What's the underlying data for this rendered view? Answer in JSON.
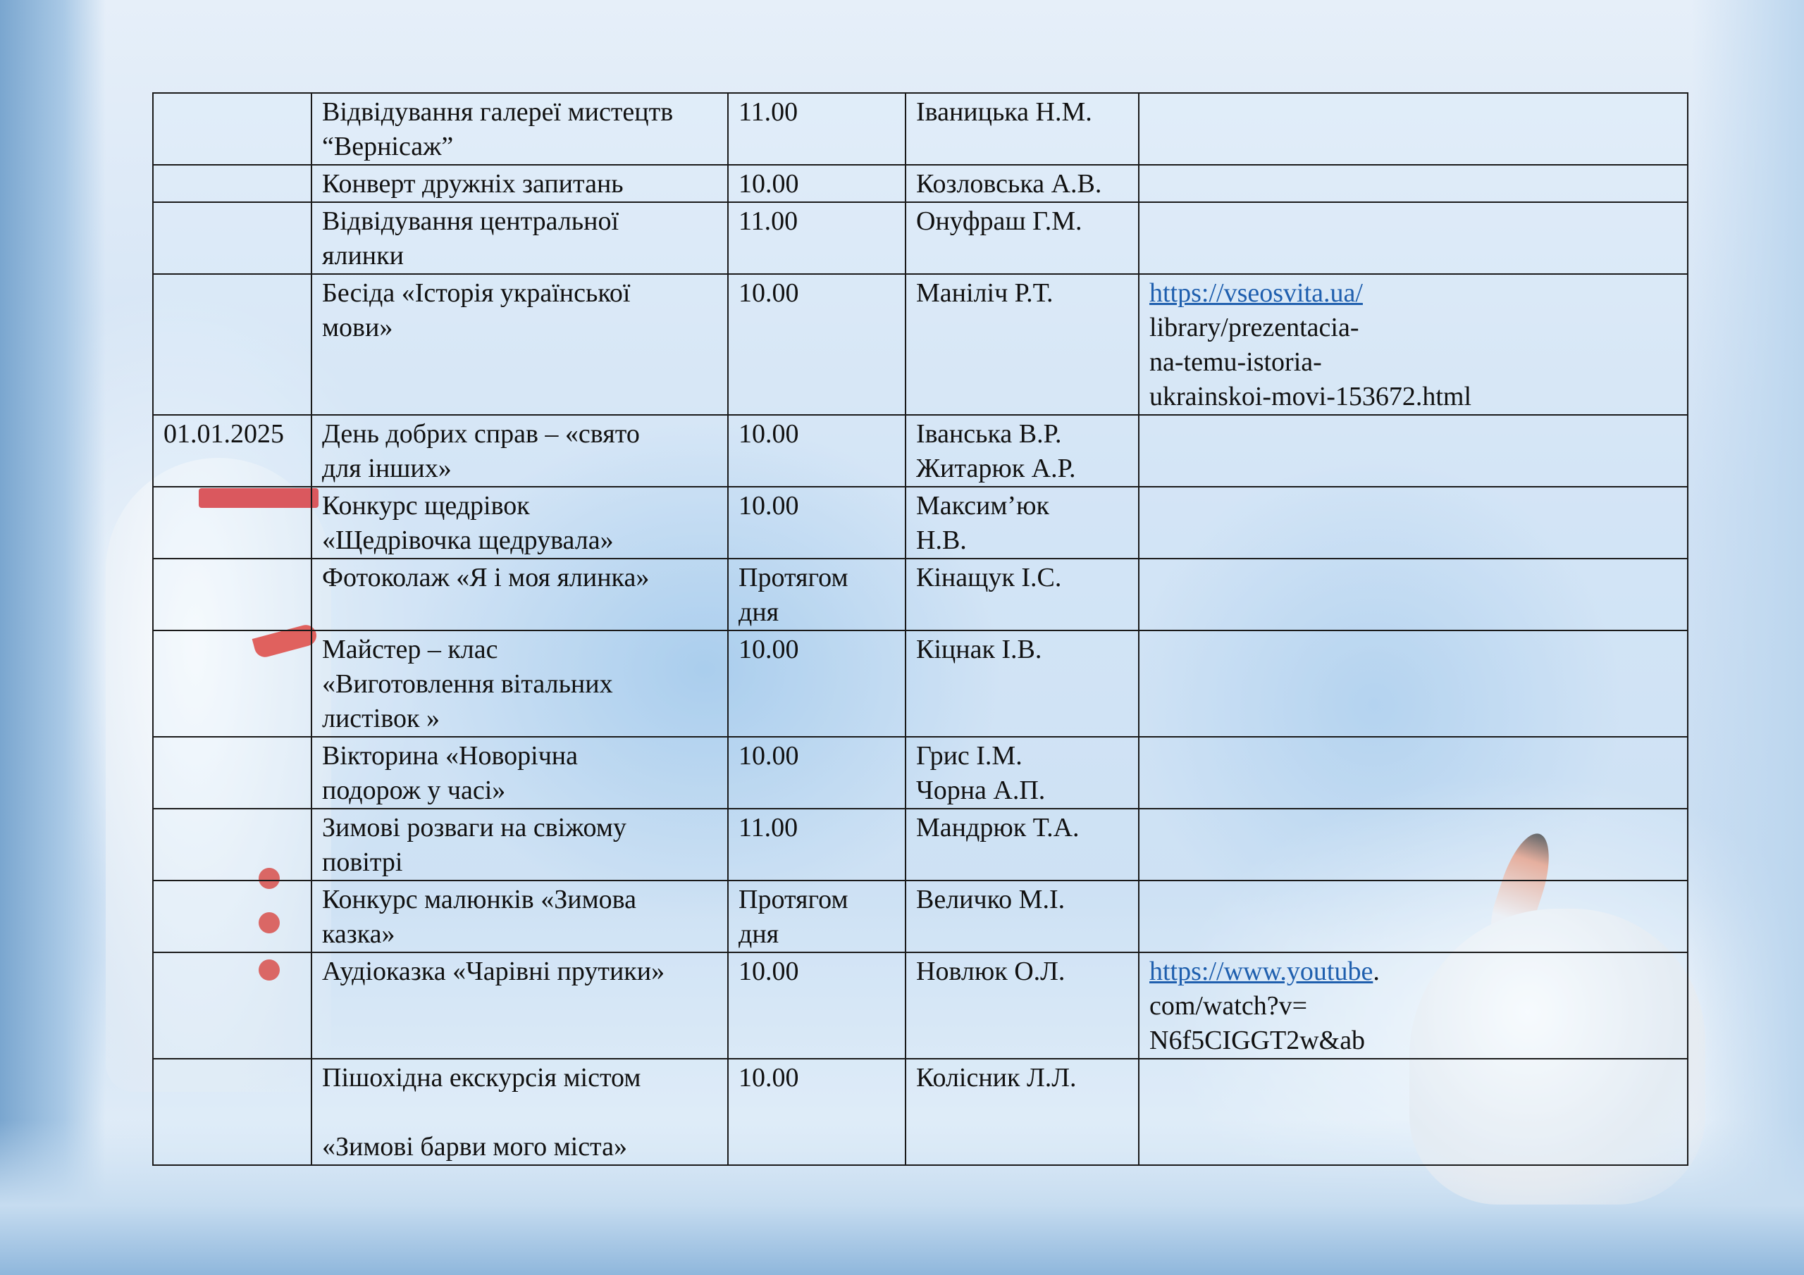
{
  "colors": {
    "link": "#1f5fae",
    "border": "#1a1a1a",
    "text": "#111111"
  },
  "rows": [
    {
      "date": "",
      "event": "Відвідування галереї мистецтв\n“Вернісаж”",
      "time": "11.00",
      "responsible": "Іваницька Н.М.",
      "resource": {
        "link": "",
        "rest": ""
      }
    },
    {
      "date": "",
      "event": "Конверт дружніх запитань",
      "time": "10.00",
      "responsible": "Козловська А.В.",
      "resource": {
        "link": "",
        "rest": ""
      }
    },
    {
      "date": "",
      "event": "Відвідування центральної\nялинки",
      "time": "11.00",
      "responsible": "Онуфраш Г.М.",
      "resource": {
        "link": "",
        "rest": ""
      }
    },
    {
      "date": "",
      "event": "Бесіда «Історія української\nмови»",
      "time": "10.00",
      "responsible": "Маніліч Р.Т.",
      "resource": {
        "link": "https://vseosvita.ua/",
        "rest": "\nlibrary/prezentacia-\nna-temu-istoria-\nukrainskoi-movi-153672.html"
      }
    },
    {
      "date": "01.01.2025",
      "event": "День добрих справ – «свято\nдля інших»",
      "time": "10.00",
      "responsible": "Іванська В.Р.\nЖитарюк А.Р.",
      "resource": {
        "link": "",
        "rest": ""
      }
    },
    {
      "date": "",
      "event": "Конкурс щедрівок\n«Щедрівочка щедрувала»",
      "time": "10.00",
      "responsible": "Максим’юк\nН.В.",
      "resource": {
        "link": "",
        "rest": ""
      }
    },
    {
      "date": "",
      "event": "Фотоколаж «Я і моя ялинка»",
      "time": "Протягом\nдня",
      "responsible": "Кінащук І.С.",
      "resource": {
        "link": "",
        "rest": ""
      }
    },
    {
      "date": "",
      "event": "Майстер – клас\n«Виготовлення вітальних\nлистівок »",
      "time": "  10.00",
      "responsible": "Кіцнак І.В.",
      "resource": {
        "link": "",
        "rest": ""
      }
    },
    {
      "date": "",
      "event": "Вікторина «Новорічна\nподорож у часі»",
      "time": "10.00",
      "responsible": "Грис І.М.\nЧорна А.П.",
      "resource": {
        "link": "",
        "rest": ""
      }
    },
    {
      "date": "",
      "event": "Зимові розваги на свіжому\nповітрі",
      "time": "11.00",
      "responsible": "Мандрюк Т.А.",
      "resource": {
        "link": "",
        "rest": ""
      }
    },
    {
      "date": "",
      "event": "Конкурс малюнків «Зимова\nказка»",
      "time": "Протягом\nдня",
      "responsible": "Величко М.І.",
      "resource": {
        "link": "",
        "rest": ""
      }
    },
    {
      "date": "",
      "event": "Аудіоказка «Чарівні прутики»",
      "time": "10.00",
      "responsible": "Новлюк О.Л.",
      "resource": {
        "link": "https://www.youtube",
        "rest": ".\ncom/watch?v=\nN6f5CIGGT2w&ab"
      }
    },
    {
      "date": "",
      "event": "Пішохідна екскурсія містом\n\n«Зимові барви мого міста»",
      "time": "10.00",
      "responsible": "Колісник Л.Л.",
      "resource": {
        "link": "",
        "rest": ""
      }
    }
  ]
}
